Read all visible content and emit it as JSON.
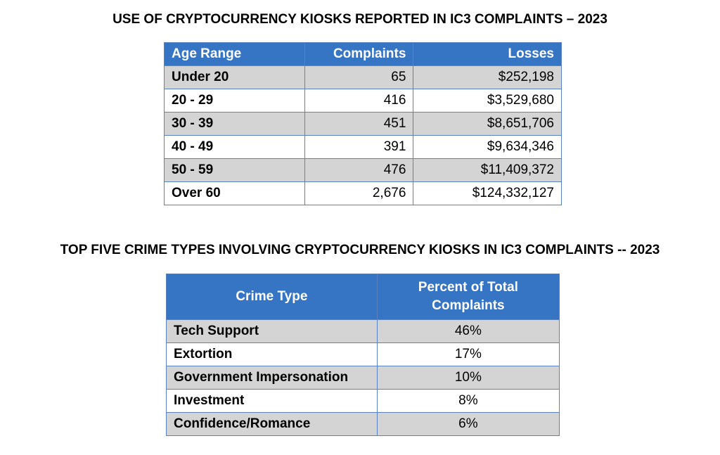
{
  "kiosk_age_table": {
    "title": "USE OF CRYPTOCURRENCY KIOSKS REPORTED IN IC3 COMPLAINTS – 2023",
    "headers": {
      "age": "Age Range",
      "complaints": "Complaints",
      "losses": "Losses"
    },
    "rows": [
      {
        "age": "Under 20",
        "complaints": "65",
        "losses": "$252,198"
      },
      {
        "age": "20 - 29",
        "complaints": "416",
        "losses": "$3,529,680"
      },
      {
        "age": "30 - 39",
        "complaints": "451",
        "losses": "$8,651,706"
      },
      {
        "age": "40 - 49",
        "complaints": "391",
        "losses": "$9,634,346"
      },
      {
        "age": "50 - 59",
        "complaints": "476",
        "losses": "$11,409,372"
      },
      {
        "age": "Over 60",
        "complaints": "2,676",
        "losses": "$124,332,127"
      }
    ]
  },
  "crime_type_table": {
    "title": "TOP FIVE CRIME TYPES INVOLVING CRYPTOCURRENCY KIOSKS IN IC3 COMPLAINTS -- 2023",
    "headers": {
      "crime": "Crime Type",
      "percent_line1": "Percent of Total",
      "percent_line2": "Complaints"
    },
    "rows": [
      {
        "crime": "Tech Support",
        "percent": "46%"
      },
      {
        "crime": "Extortion",
        "percent": "17%"
      },
      {
        "crime": "Government Impersonation",
        "percent": "10%"
      },
      {
        "crime": "Investment",
        "percent": "8%"
      },
      {
        "crime": "Confidence/Romance",
        "percent": "6%"
      }
    ]
  },
  "colors": {
    "header_bg": "#3674c4",
    "alt_row_bg": "#d4d4d4",
    "border": "#5a82c2"
  }
}
